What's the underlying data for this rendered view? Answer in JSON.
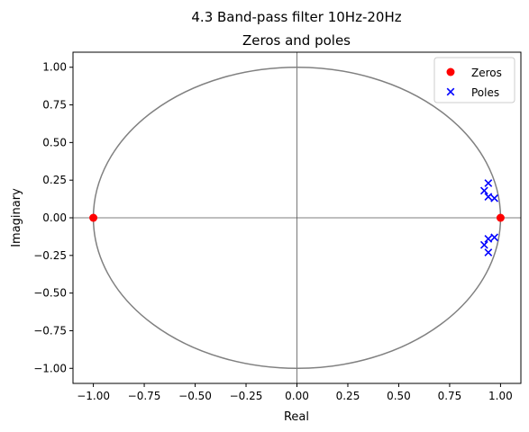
{
  "chart_data": {
    "type": "scatter",
    "suptitle": "4.3 Band-pass filter 10Hz-20Hz",
    "title": "Zeros and poles",
    "xlabel": "Real",
    "ylabel": "Imaginary",
    "xlim": [
      -1.1,
      1.1
    ],
    "ylim": [
      -1.1,
      1.1
    ],
    "xticks": [
      -1.0,
      -0.75,
      -0.5,
      -0.25,
      0.0,
      0.25,
      0.5,
      0.75,
      1.0
    ],
    "xtick_labels": [
      "−1.00",
      "−0.75",
      "−0.50",
      "−0.25",
      "0.00",
      "0.25",
      "0.50",
      "0.75",
      "1.00"
    ],
    "yticks": [
      -1.0,
      -0.75,
      -0.5,
      -0.25,
      0.0,
      0.25,
      0.5,
      0.75,
      1.0
    ],
    "ytick_labels": [
      "−1.00",
      "−0.75",
      "−0.50",
      "−0.25",
      "0.00",
      "0.25",
      "0.50",
      "0.75",
      "1.00"
    ],
    "grid": false,
    "legend": "top-right",
    "unit_circle": {
      "radius": 1,
      "color": "#808080"
    },
    "axis_lines_color": "#555555",
    "series": [
      {
        "name": "Zeros",
        "marker": "circle",
        "color": "#ff0000",
        "points": [
          {
            "x": -1.0,
            "y": 0.0
          },
          {
            "x": 1.0,
            "y": 0.0
          }
        ]
      },
      {
        "name": "Poles",
        "marker": "x",
        "color": "#0000ff",
        "points": [
          {
            "x": 0.94,
            "y": 0.23
          },
          {
            "x": 0.92,
            "y": 0.18
          },
          {
            "x": 0.94,
            "y": 0.14
          },
          {
            "x": 0.97,
            "y": 0.13
          },
          {
            "x": 0.94,
            "y": -0.23
          },
          {
            "x": 0.92,
            "y": -0.18
          },
          {
            "x": 0.94,
            "y": -0.14
          },
          {
            "x": 0.97,
            "y": -0.13
          }
        ]
      }
    ]
  }
}
